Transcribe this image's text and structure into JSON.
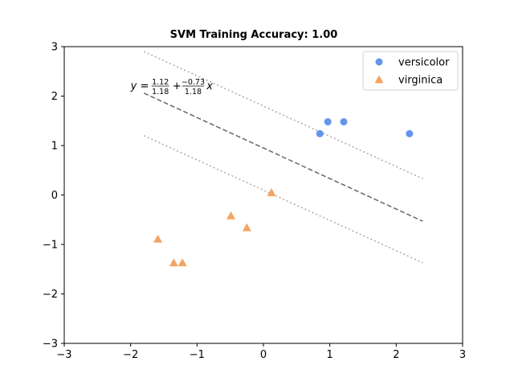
{
  "chart_data": {
    "type": "scatter",
    "title": "SVM Training Accuracy: 1.00",
    "xlabel": "",
    "ylabel": "",
    "xlim": [
      -3,
      3
    ],
    "ylim": [
      -3,
      3
    ],
    "xticks": [
      -3,
      -2,
      -1,
      0,
      1,
      2,
      3
    ],
    "yticks": [
      -3,
      -2,
      -1,
      0,
      1,
      2,
      3
    ],
    "xtick_labels": [
      "−3",
      "−2",
      "−1",
      "0",
      "1",
      "2",
      "3"
    ],
    "ytick_labels": [
      "−3",
      "−2",
      "−1",
      "0",
      "1",
      "2",
      "3"
    ],
    "grid": false,
    "legend_position": "top-right",
    "series": [
      {
        "name": "versicolor",
        "marker": "circle",
        "color": "#6495ED",
        "points": [
          {
            "x": 0.85,
            "y": 1.24
          },
          {
            "x": 0.97,
            "y": 1.48
          },
          {
            "x": 1.21,
            "y": 1.48
          },
          {
            "x": 2.2,
            "y": 1.24
          }
        ]
      },
      {
        "name": "virginica",
        "marker": "triangle",
        "color": "#F4A460",
        "points": [
          {
            "x": 0.12,
            "y": 0.05
          },
          {
            "x": -0.49,
            "y": -0.42
          },
          {
            "x": -0.25,
            "y": -0.66
          },
          {
            "x": -1.59,
            "y": -0.89
          },
          {
            "x": -1.35,
            "y": -1.37
          },
          {
            "x": -1.22,
            "y": -1.37
          }
        ]
      }
    ],
    "lines": [
      {
        "role": "decision-boundary",
        "style": "dashed",
        "color": "#666666",
        "x": [
          -1.8,
          2.4
        ],
        "y": [
          2.06,
          -0.53
        ]
      },
      {
        "role": "upper-margin",
        "style": "dotted",
        "color": "#aaaaaa",
        "x": [
          -1.8,
          2.4
        ],
        "y": [
          2.9,
          0.33
        ]
      },
      {
        "role": "lower-margin",
        "style": "dotted",
        "color": "#aaaaaa",
        "x": [
          -1.8,
          2.4
        ],
        "y": [
          1.2,
          -1.37
        ]
      }
    ],
    "annotation": {
      "x": -2.0,
      "y": 2.22,
      "lhs": "y = ",
      "term1_num": "1.12",
      "term1_den": "1.18",
      "op": "+",
      "term2_num": "−0.73",
      "term2_den": "1.18",
      "var": "x"
    }
  }
}
